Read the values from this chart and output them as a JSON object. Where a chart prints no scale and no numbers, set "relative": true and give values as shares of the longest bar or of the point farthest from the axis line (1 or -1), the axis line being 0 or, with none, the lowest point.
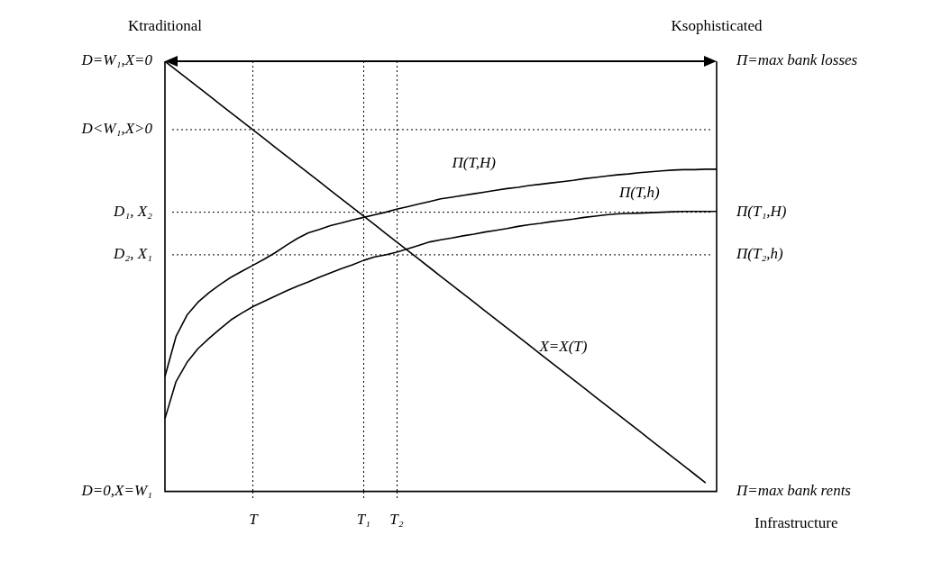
{
  "chart_data": {
    "type": "line",
    "relative": true,
    "xlabel": "Infrastructure",
    "categories": [
      null,
      null,
      null,
      null,
      null,
      null,
      null,
      null,
      "T",
      null,
      null,
      null,
      null,
      null,
      null,
      null,
      null,
      null,
      "T₁",
      null,
      null,
      "T₂",
      null,
      null,
      null,
      null,
      null,
      null,
      null,
      null,
      null,
      null,
      null,
      null,
      null,
      null,
      null,
      null,
      null,
      null,
      null,
      null,
      null,
      null,
      null,
      null,
      null,
      null,
      null,
      null,
      null
    ],
    "series": [
      {
        "name": "Π(T,H)",
        "color": "#000000",
        "values": [
          0.267,
          0.36,
          0.41,
          0.44,
          0.462,
          0.481,
          0.498,
          0.512,
          0.526,
          0.54,
          0.555,
          0.572,
          0.588,
          0.601,
          0.609,
          0.618,
          0.624,
          0.631,
          0.637,
          0.643,
          0.649,
          0.656,
          0.662,
          0.668,
          0.674,
          0.68,
          0.684,
          0.688,
          0.692,
          0.696,
          0.7,
          0.704,
          0.707,
          0.711,
          0.714,
          0.717,
          0.72,
          0.723,
          0.727,
          0.73,
          0.733,
          0.736,
          0.738,
          0.741,
          0.743,
          0.745,
          0.747,
          0.748,
          0.748,
          0.749,
          0.749
        ]
      },
      {
        "name": "Π(T,h)",
        "color": "#000000",
        "values": [
          0.169,
          0.255,
          0.3,
          0.332,
          0.356,
          0.378,
          0.399,
          0.415,
          0.43,
          0.442,
          0.454,
          0.466,
          0.477,
          0.487,
          0.498,
          0.508,
          0.518,
          0.527,
          0.537,
          0.545,
          0.55,
          0.556,
          0.564,
          0.572,
          0.58,
          0.585,
          0.589,
          0.594,
          0.598,
          0.603,
          0.607,
          0.611,
          0.616,
          0.62,
          0.623,
          0.627,
          0.63,
          0.633,
          0.637,
          0.64,
          0.643,
          0.645,
          0.646,
          0.647,
          0.648,
          0.649,
          0.65,
          0.651,
          0.651,
          0.651,
          0.651
        ]
      },
      {
        "name": "X=X(T)",
        "color": "#000000",
        "values": [
          1,
          0.98,
          0.96,
          0.94,
          0.92,
          0.9,
          0.88,
          0.86,
          0.84,
          0.82,
          0.8,
          0.78,
          0.76,
          0.74,
          0.72,
          0.7,
          0.68,
          0.66,
          0.64,
          0.62,
          0.6,
          0.58,
          0.56,
          0.54,
          0.52,
          0.5,
          0.48,
          0.46,
          0.44,
          0.42,
          0.4,
          0.38,
          0.36,
          0.34,
          0.32,
          0.3,
          0.28,
          0.26,
          0.24,
          0.22,
          0.2,
          0.18,
          0.16,
          0.14,
          0.12,
          0.1,
          0.08,
          0.06,
          0.04,
          0.02,
          null
        ]
      }
    ],
    "ref_lines": [
      {
        "axis": "y",
        "value": 0.841,
        "label": "D<W₁,X>0",
        "line_style": "dotted"
      },
      {
        "axis": "y",
        "value": 0.649,
        "label": "D₁, X₂",
        "line_style": "dotted"
      },
      {
        "axis": "y",
        "value": 0.55,
        "label": "D₂, X₁",
        "line_style": "dotted"
      }
    ],
    "annotations": [
      "Ktraditional",
      "Ksophisticated",
      "D=W₁,X=0",
      "D=0,X=W₁",
      "Π=max bank losses",
      "Π(T₁,H)",
      "Π(T₂,h)",
      "Π=max bank rents"
    ],
    "grid": "x",
    "legend": false
  }
}
